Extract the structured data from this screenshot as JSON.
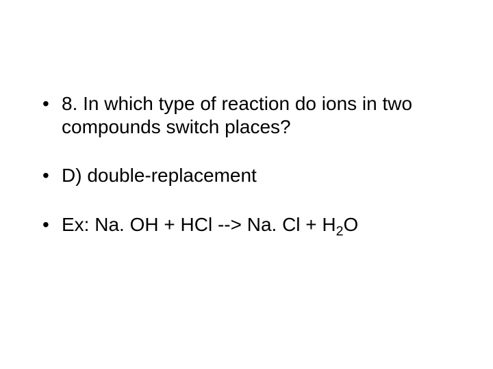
{
  "slide": {
    "background_color": "#ffffff",
    "text_color": "#000000",
    "font_family": "Arial",
    "body_fontsize_pt": 28,
    "bullets": [
      {
        "text": "8. In which type of reaction do ions in two compounds switch places?"
      },
      {
        "text": "D) double-replacement"
      },
      {
        "prefix": "Ex:  Na. OH + HCl --> Na. Cl + H",
        "sub": "2",
        "suffix": "O"
      }
    ]
  }
}
